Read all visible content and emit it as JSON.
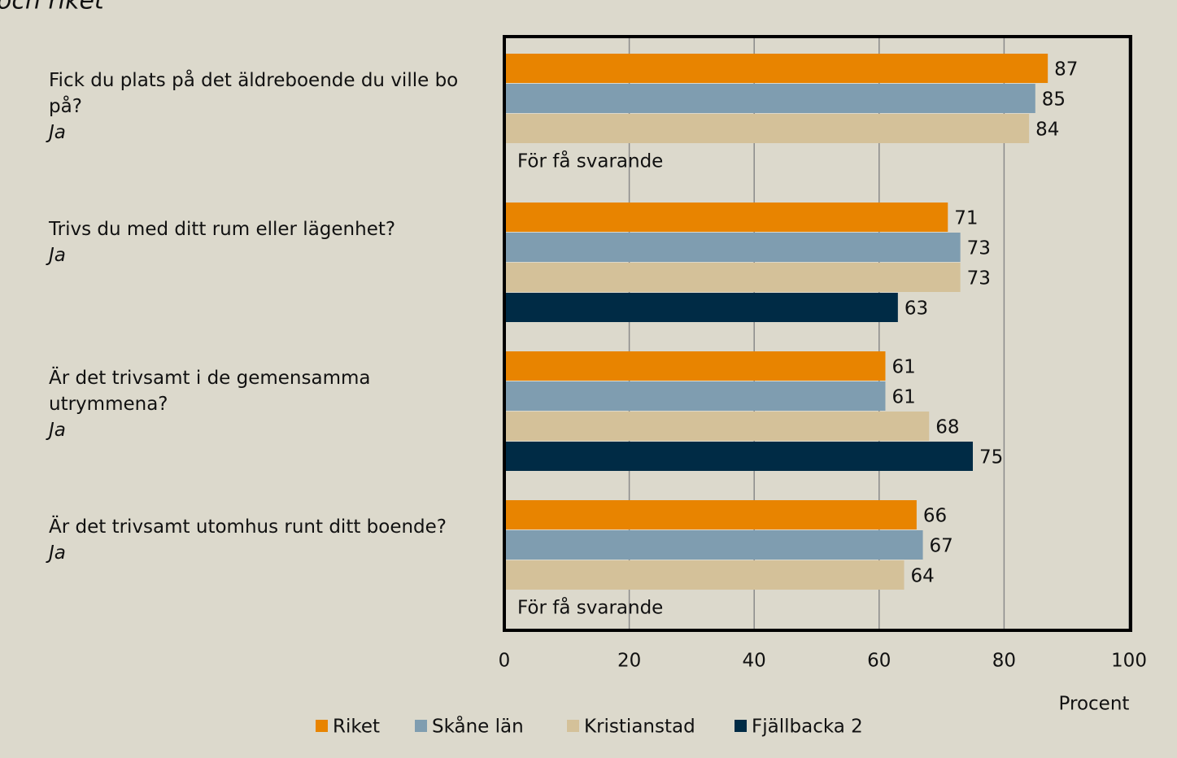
{
  "chart_data": {
    "type": "barh",
    "title": "och riket",
    "categories": [
      "Fick du plats på det äldreboende du ville bo på?",
      "Trivs du med ditt rum eller lägenhet?",
      "Är det trivsamt i de gemensamma utrymmena?",
      "Är det trivsamt utomhus runt ditt boende?"
    ],
    "category_notes": [
      "Ja",
      "Ja",
      "Ja",
      "Ja"
    ],
    "series": [
      {
        "name": "Riket",
        "color": "#e88400",
        "values": [
          87,
          71,
          61,
          66
        ]
      },
      {
        "name": "Skåne län",
        "color": "#7f9db0",
        "values": [
          85,
          73,
          61,
          67
        ]
      },
      {
        "name": "Kristianstad",
        "color": "#d4c199",
        "values": [
          84,
          73,
          68,
          64
        ]
      },
      {
        "name": "Fjällbacka 2",
        "color": "#002b45",
        "values": [
          null,
          63,
          75,
          null
        ]
      }
    ],
    "annotations": [
      "För få svarande",
      "För få svarande"
    ],
    "xlabel": "Procent",
    "xlim": [
      0,
      100
    ],
    "xticks": [
      0,
      20,
      40,
      60,
      80,
      100
    ],
    "grid": true,
    "legend": "bottom"
  }
}
